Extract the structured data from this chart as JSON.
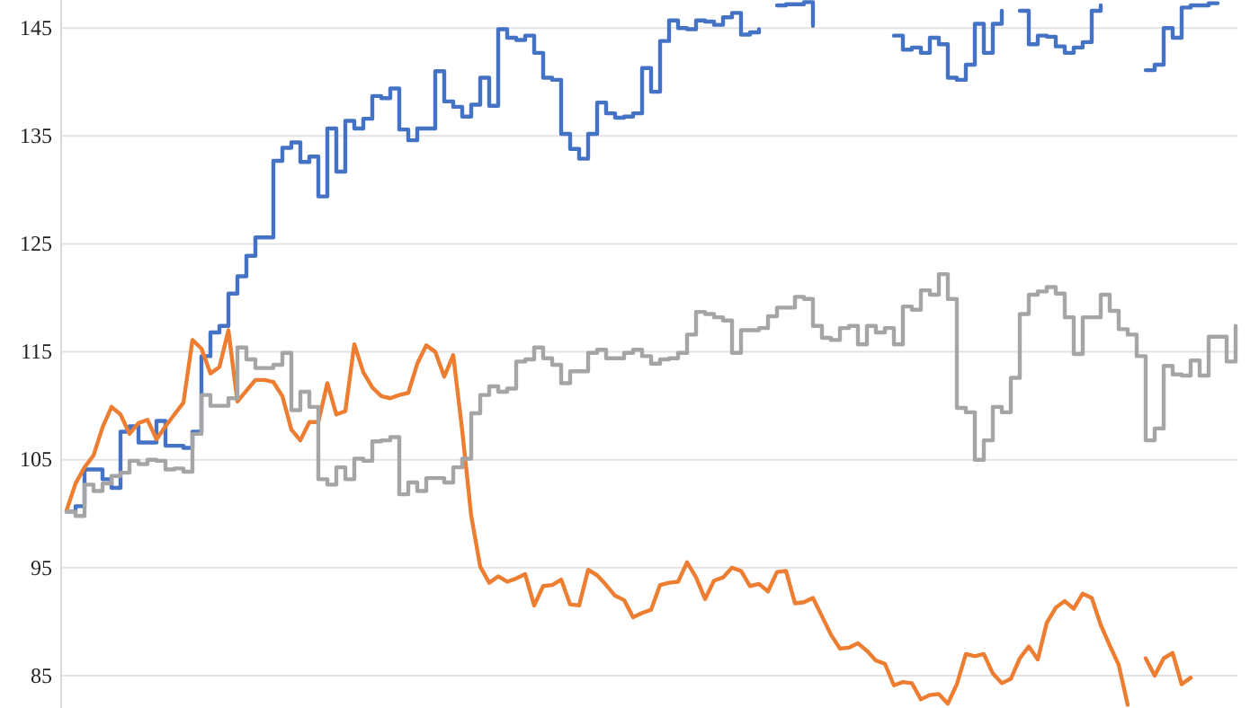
{
  "chart_data": {
    "type": "line",
    "categories": [
      null,
      null,
      null,
      null,
      null,
      null,
      null,
      null,
      null,
      null,
      null,
      null,
      null,
      null,
      null,
      null,
      null,
      null,
      null,
      null,
      null,
      null,
      null,
      null,
      null,
      null,
      null,
      null,
      null,
      null,
      null,
      null,
      null,
      null,
      null,
      null,
      null,
      null,
      null,
      null,
      null,
      null,
      null,
      null,
      null,
      null,
      null,
      null,
      null,
      null,
      null,
      null,
      null,
      null,
      null,
      null,
      null,
      null,
      null,
      null,
      null,
      null,
      null,
      null,
      null,
      null,
      null,
      null,
      null,
      null,
      null,
      null,
      null,
      null,
      null,
      null,
      null,
      null,
      null,
      null,
      null,
      null,
      null,
      null,
      null,
      null,
      null,
      null,
      null,
      null,
      null,
      null,
      null,
      null,
      null,
      null,
      null,
      null,
      null,
      null,
      null,
      null,
      null,
      null,
      null,
      null,
      null,
      null,
      null,
      null,
      null,
      null,
      null,
      null,
      null,
      null,
      null,
      null,
      null,
      null,
      null,
      null,
      null,
      null,
      null,
      null,
      null,
      null,
      null,
      null,
      null
    ],
    "series": [
      {
        "type": "step",
        "color": "#4472c4",
        "values": [
          100.2,
          100.7,
          104.1,
          104.1,
          103.2,
          102.4,
          107.6,
          108.1,
          106.6,
          106.6,
          108.6,
          106.3,
          106.3,
          106.1,
          107.6,
          114.6,
          116.8,
          117.4,
          120.4,
          122,
          123.9,
          125.6,
          125.6,
          132.7,
          133.9,
          134.4,
          132.6,
          133.1,
          129.4,
          135.7,
          131.7,
          136.4,
          135.7,
          136.6,
          138.7,
          138.5,
          139.4,
          135.6,
          134.6,
          135.7,
          135.7,
          141,
          138.2,
          137.7,
          136.8,
          137.9,
          140.4,
          137.8,
          144.9,
          144.1,
          143.9,
          144.3,
          142.7,
          140.4,
          140.2,
          135.2,
          133.8,
          132.9,
          135.2,
          138.1,
          137.1,
          136.7,
          136.8,
          137.1,
          141.3,
          139.1,
          143.8,
          145.7,
          145,
          144.9,
          145.7,
          145.6,
          145.3,
          146,
          146.4,
          144.4,
          144.6,
          144.9,
          null,
          147.1,
          147.2,
          147.2,
          147.4,
          145.2,
          null,
          null,
          null,
          null,
          null,
          null,
          null,
          null,
          144.3,
          143,
          143.2,
          142.7,
          144.1,
          143.5,
          140.4,
          140.2,
          141.6,
          145.4,
          142.7,
          145.4,
          146.6,
          null,
          146.6,
          143.5,
          144.3,
          144.2,
          143.3,
          142.7,
          143.2,
          143.7,
          146.6,
          147.1,
          null,
          null,
          null,
          null,
          141.1,
          141.6,
          145,
          144.1,
          146.9,
          147.1,
          147.1,
          147.3,
          147.3,
          null,
          null
        ]
      },
      {
        "type": "line",
        "color": "#ed7d31",
        "values": [
          100.3,
          102.8,
          104.3,
          105.4,
          108,
          109.9,
          109.2,
          107.4,
          108.4,
          108.7,
          106.9,
          108.1,
          109.2,
          110.3,
          116.1,
          115.3,
          113,
          113.6,
          117,
          110.4,
          111.4,
          112.4,
          112.4,
          112.2,
          110.9,
          107.8,
          106.8,
          108.5,
          108.5,
          112.1,
          109.2,
          109.5,
          115.7,
          113.1,
          111.7,
          110.9,
          110.7,
          111,
          111.2,
          113.9,
          115.6,
          115,
          112.7,
          114.7,
          107.7,
          99.8,
          95.1,
          93.6,
          94.2,
          93.7,
          94,
          94.4,
          91.5,
          93.3,
          93.4,
          93.9,
          91.6,
          91.5,
          94.8,
          94.3,
          93.4,
          92.4,
          92,
          90.4,
          90.8,
          91.1,
          93.4,
          93.6,
          93.7,
          95.5,
          94.1,
          92.1,
          93.8,
          94.1,
          95,
          94.7,
          93.3,
          93.5,
          92.8,
          94.6,
          94.7,
          91.7,
          91.8,
          92.2,
          90.5,
          88.8,
          87.5,
          87.6,
          88,
          87.3,
          86.4,
          86.1,
          84.1,
          84.4,
          84.3,
          82.8,
          83.2,
          83.3,
          82.4,
          84.2,
          87,
          86.8,
          87,
          85.2,
          84.3,
          84.7,
          86.6,
          87.7,
          86.5,
          89.9,
          91.3,
          91.9,
          91.2,
          92.6,
          92.2,
          89.7,
          87.8,
          86,
          82.3,
          null,
          86.6,
          85,
          86.6,
          87.1,
          84.2,
          84.8,
          null,
          null,
          null,
          null,
          null
        ]
      },
      {
        "type": "step",
        "color": "#a5a5a5",
        "values": [
          100.2,
          99.8,
          102.7,
          102.1,
          102.8,
          103.5,
          103.8,
          104.9,
          104.6,
          105,
          104.9,
          104.1,
          104.2,
          103.9,
          107.4,
          111,
          110,
          110,
          110.7,
          115.4,
          114.3,
          113.5,
          113.5,
          113.8,
          114.9,
          109.6,
          111.3,
          109.9,
          103.2,
          102.7,
          104.3,
          103.2,
          105.1,
          104.9,
          106.7,
          106.8,
          107.1,
          101.8,
          102.9,
          102.1,
          103.3,
          103.3,
          102.9,
          104.3,
          105.1,
          109.3,
          111,
          111.8,
          111.3,
          111.6,
          114.1,
          114.3,
          115.4,
          114.4,
          113.8,
          112.1,
          113.2,
          113.2,
          114.9,
          115.2,
          114.4,
          114.4,
          114.9,
          115.2,
          114.6,
          113.9,
          114.3,
          114.4,
          114.9,
          116.6,
          118.7,
          118.5,
          118.2,
          117.9,
          114.9,
          117,
          117,
          117.2,
          118.3,
          119.1,
          119.1,
          120.1,
          119.9,
          117.4,
          116.3,
          116.1,
          117.2,
          117.4,
          115.7,
          117.4,
          116.8,
          117.2,
          115.7,
          119.2,
          118.9,
          120.7,
          120.3,
          122.2,
          119.9,
          109.8,
          109.4,
          105,
          106.8,
          109.9,
          109.4,
          112.6,
          118.5,
          120.3,
          120.6,
          121,
          120.4,
          118.2,
          114.8,
          118.2,
          118.2,
          120.3,
          118.8,
          117.1,
          116.6,
          114.6,
          106.8,
          107.9,
          113.7,
          112.9,
          112.8,
          114.2,
          112.8,
          116.4,
          116.4,
          114.1,
          117.4
        ]
      }
    ],
    "ylim": [
      82,
      147.6
    ],
    "yticks": [
      85,
      95,
      105,
      115,
      125,
      135,
      145
    ],
    "grid": "y",
    "tick_labels": "y"
  }
}
